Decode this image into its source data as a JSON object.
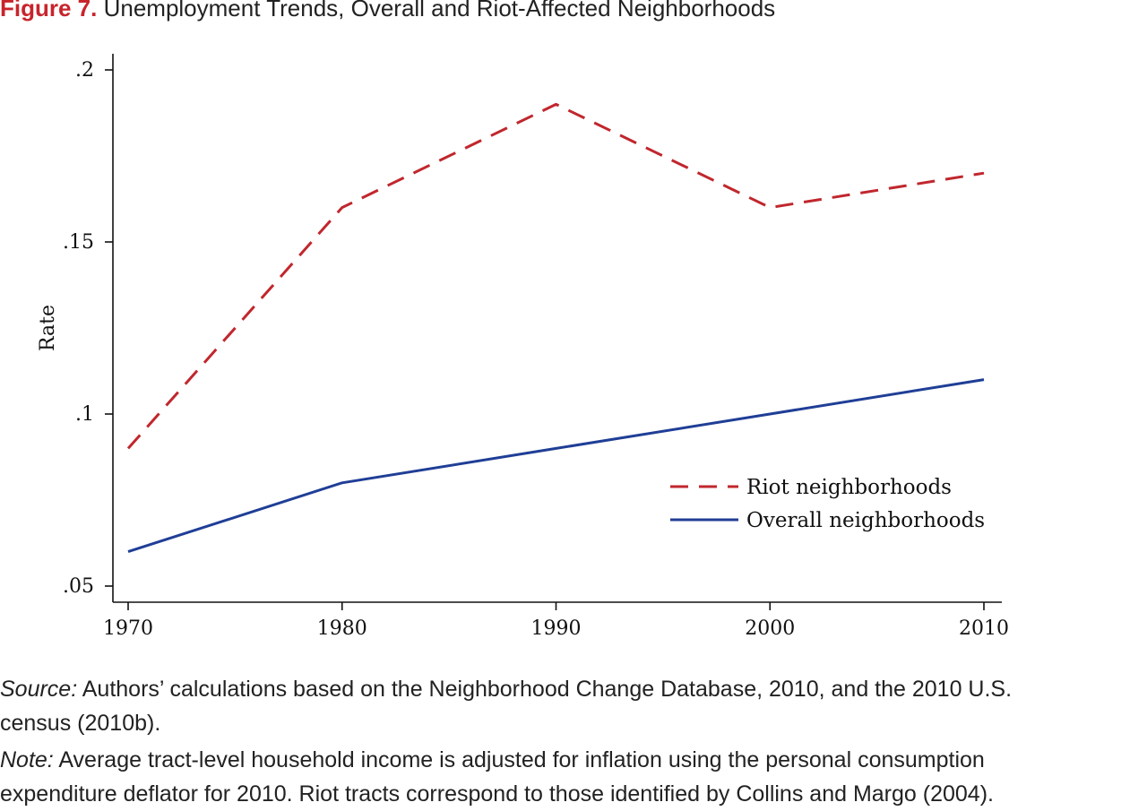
{
  "figure": {
    "label": "Figure 7.",
    "title": "Unemployment Trends, Overall and Riot-Affected Neighborhoods"
  },
  "colors": {
    "accent": "#c8242b",
    "riot_series": "#c0272d",
    "overall_series": "#1f3e96"
  },
  "chart_data": {
    "type": "line",
    "title": "",
    "xlabel": "",
    "ylabel": "Rate",
    "x": [
      1970,
      1980,
      1990,
      2000,
      2010
    ],
    "xlim": [
      1970,
      2010
    ],
    "ylim": [
      0.05,
      0.2
    ],
    "xticks": [
      {
        "value": 1970,
        "label": "1970"
      },
      {
        "value": 1980,
        "label": "1980"
      },
      {
        "value": 1990,
        "label": "1990"
      },
      {
        "value": 2000,
        "label": "2000"
      },
      {
        "value": 2010,
        "label": "2010"
      }
    ],
    "yticks": [
      {
        "value": 0.05,
        "label": ".05"
      },
      {
        "value": 0.1,
        "label": ".1"
      },
      {
        "value": 0.15,
        "label": ".15"
      },
      {
        "value": 0.2,
        "label": ".2"
      }
    ],
    "grid": false,
    "legend_position": "lower-right inside plot",
    "series": [
      {
        "name": "Riot neighborhoods",
        "style": "dashed",
        "color": "#c0272d",
        "values": [
          0.09,
          0.16,
          0.19,
          0.16,
          0.17
        ]
      },
      {
        "name": "Overall neighborhoods",
        "style": "solid",
        "color": "#1f3e96",
        "values": [
          0.06,
          0.08,
          0.09,
          0.1,
          0.11
        ]
      }
    ]
  },
  "captions": {
    "source_lead": "Source:",
    "source_line1": " Authors’ calculations based on the Neighborhood Change Database, 2010, and the 2010 U.S.",
    "source_line2": "census (2010b).",
    "note_lead": "Note:",
    "note_line1": " Average tract-level household income is adjusted for inflation using the personal consumption",
    "note_line2": "expenditure deflator for 2010. Riot tracts correspond to those identified by Collins and Margo (2004)."
  }
}
